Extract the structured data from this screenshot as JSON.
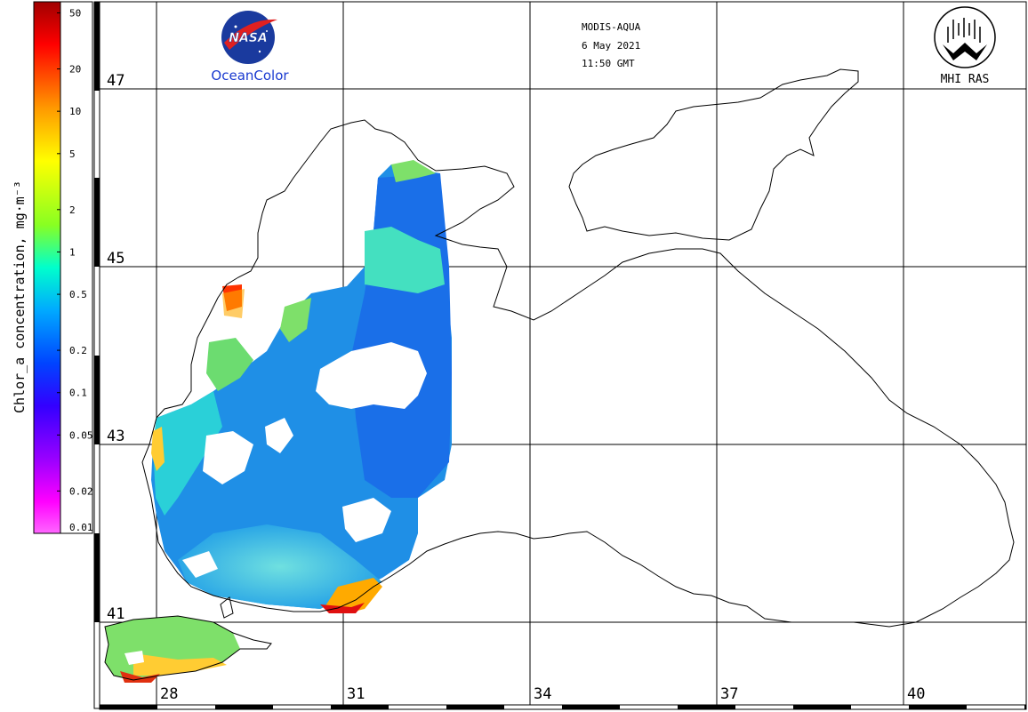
{
  "header": {
    "sensor": "MODIS-AQUA",
    "date": "6 May 2021",
    "time": "11:50 GMT"
  },
  "logos": {
    "nasa_text": "NASA",
    "oceancolor_text": "OceanColor",
    "mhi_text": "MHI RAS"
  },
  "colorbar": {
    "title": "Chlor_a concentration, mg·m⁻³",
    "ticks": [
      "50",
      "20",
      "10",
      "5",
      "2",
      "1",
      "0.5",
      "0.2",
      "0.1",
      "0.05",
      "0.02",
      "0.01"
    ],
    "colors": [
      "#a00000",
      "#ff0000",
      "#ff9900",
      "#ffff00",
      "#88ff22",
      "#00ffcc",
      "#00aaff",
      "#0044ff",
      "#3300ff",
      "#9900ff",
      "#ff00ff",
      "#ff66ff"
    ]
  },
  "axes": {
    "latitudes": [
      "47",
      "45",
      "43",
      "41"
    ],
    "longitudes": [
      "28",
      "31",
      "34",
      "37",
      "40"
    ]
  }
}
